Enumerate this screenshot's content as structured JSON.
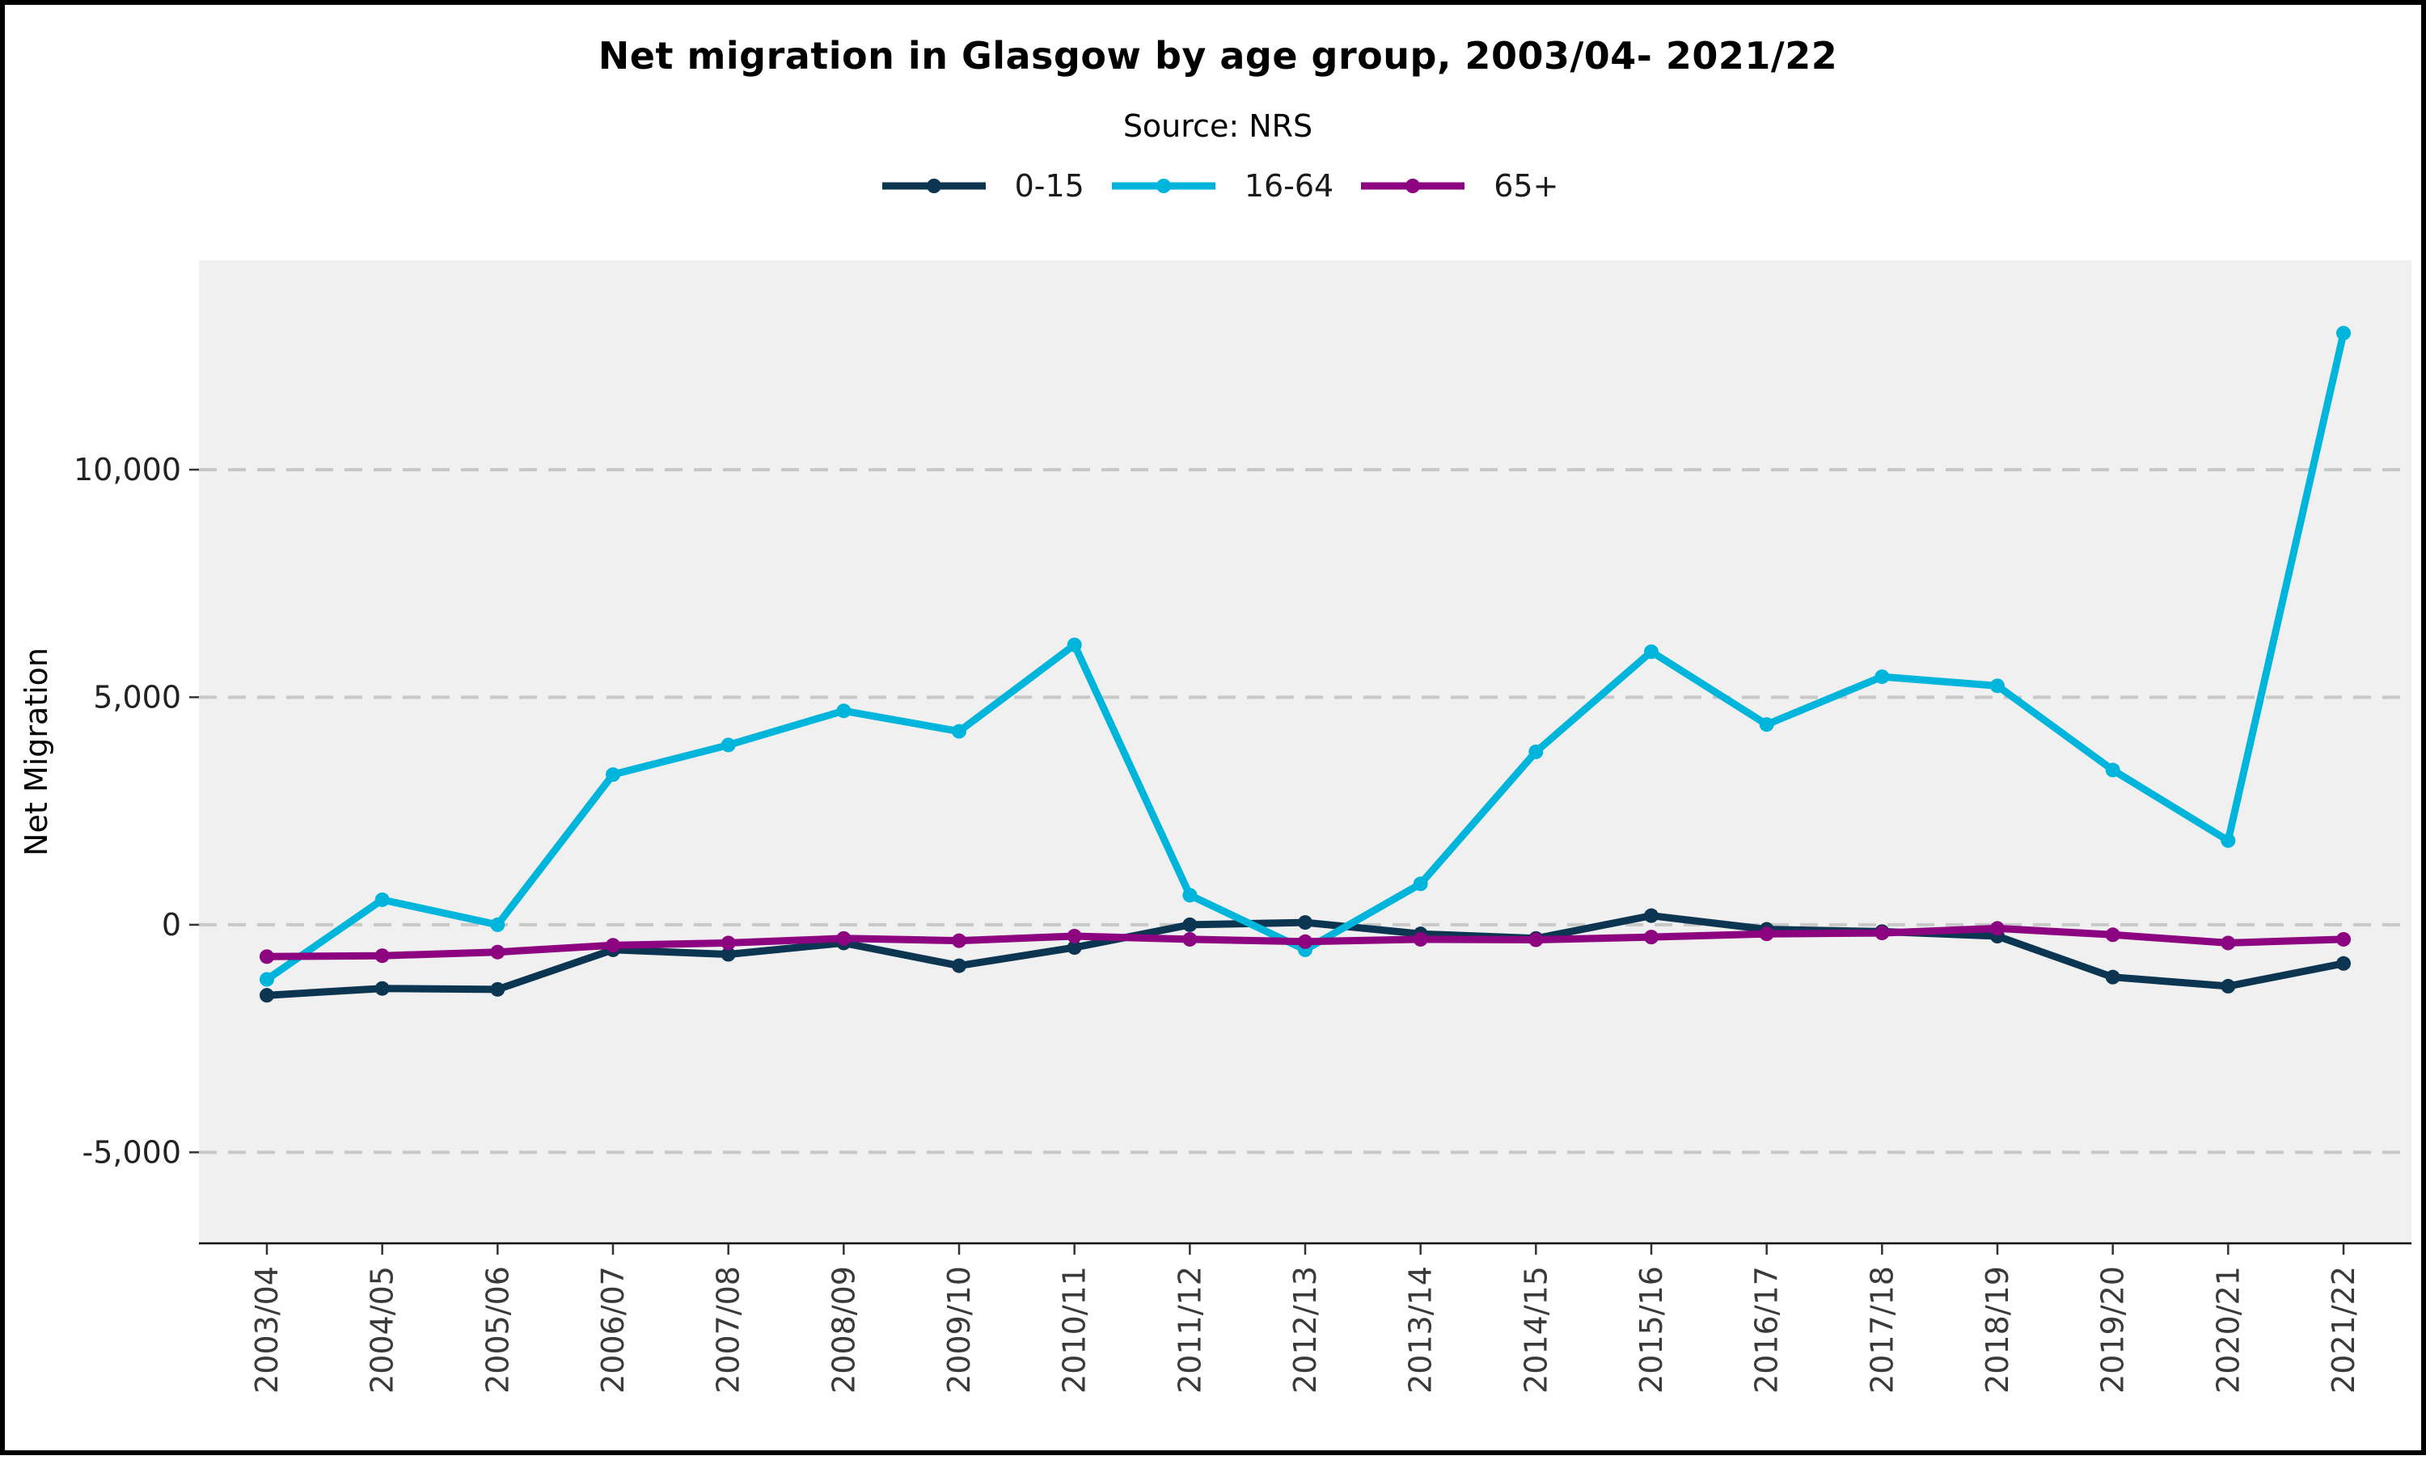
{
  "chart_data": {
    "type": "line",
    "title": "Net migration in Glasgow by age group, 2003/04- 2021/22",
    "subtitle": "Source: NRS",
    "xlabel": "",
    "ylabel": "Net Migration",
    "ylim": [
      -7000,
      14600
    ],
    "y_ticks": [
      -5000,
      0,
      5000,
      10000
    ],
    "y_tick_labels": [
      "-5,000",
      "0",
      "5,000",
      "10,000"
    ],
    "grid": "horizontal dashed",
    "legend_position": "top",
    "categories": [
      "2003/04",
      "2004/05",
      "2005/06",
      "2006/07",
      "2007/08",
      "2008/09",
      "2009/10",
      "2010/11",
      "2011/12",
      "2012/13",
      "2013/14",
      "2014/15",
      "2015/16",
      "2016/17",
      "2017/18",
      "2018/19",
      "2019/20",
      "2020/21",
      "2021/22"
    ],
    "series": [
      {
        "name": "0-15",
        "color": "#0c3552",
        "values": [
          -1550,
          -1400,
          -1420,
          -550,
          -650,
          -400,
          -900,
          -500,
          0,
          50,
          -200,
          -300,
          200,
          -100,
          -150,
          -250,
          -1150,
          -1350,
          -850
        ]
      },
      {
        "name": "16-64",
        "color": "#00b5db",
        "values": [
          -1200,
          550,
          0,
          3300,
          3950,
          4700,
          4250,
          6150,
          650,
          -550,
          900,
          3800,
          6000,
          4400,
          5450,
          5250,
          3400,
          1850,
          13000
        ]
      },
      {
        "name": "65+",
        "color": "#8c0480",
        "values": [
          -700,
          -680,
          -600,
          -450,
          -400,
          -300,
          -350,
          -250,
          -320,
          -370,
          -320,
          -330,
          -270,
          -200,
          -180,
          -80,
          -220,
          -400,
          -320
        ]
      }
    ]
  }
}
